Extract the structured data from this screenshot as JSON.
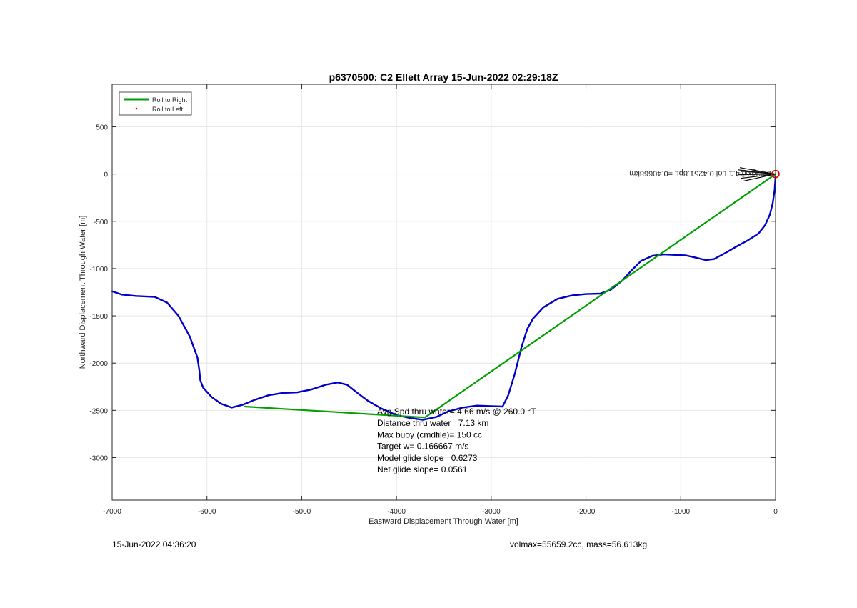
{
  "footer": {
    "timestamp": "15-Jun-2022 04:36:20",
    "volmax_mass": "volmax=55659.2cc, mass=56.613kg"
  },
  "chart_data": {
    "type": "line",
    "title": "p6370500: C2 Ellett Array 15-Jun-2022 02:29:18Z",
    "xlabel": "Eastward Displacement Through Water [m]",
    "ylabel": "Northward Displacement Through Water [m]",
    "xlim": [
      -7000,
      0
    ],
    "ylim": [
      -3450,
      950
    ],
    "xticks": [
      -7000,
      -6000,
      -5000,
      -4000,
      -3000,
      -2000,
      -1000,
      0
    ],
    "yticks": [
      500,
      0,
      -500,
      -1000,
      -1500,
      -2000,
      -2500,
      -3000
    ],
    "grid": true,
    "legend": {
      "placement": "top-left",
      "entries": [
        {
          "label": "Roll to Right",
          "marker": "line",
          "color": "#00a000"
        },
        {
          "label": "Roll to Left",
          "marker": "dot",
          "color": "#e00000"
        }
      ]
    },
    "series": [
      {
        "color": "#0000c8",
        "x": [
          -7000,
          -6900,
          -6750,
          -6550,
          -6420,
          -6300,
          -6180,
          -6100,
          -6080,
          -6070,
          -6040,
          -5950,
          -5850,
          -5740,
          -5620,
          -5500,
          -5350,
          -5200,
          -5050,
          -4900,
          -4750,
          -4620,
          -4520,
          -4420,
          -4300,
          -4160,
          -4000,
          -3860,
          -3720,
          -3580,
          -3450,
          -3300,
          -3150,
          -3000,
          -2880,
          -2820,
          -2750,
          -2680,
          -2620,
          -2560,
          -2450,
          -2300,
          -2150,
          -2000,
          -1850,
          -1740,
          -1620,
          -1520,
          -1420,
          -1300,
          -1180,
          -1060,
          -950,
          -840,
          -740,
          -650,
          -520,
          -400,
          -290,
          -180,
          -110,
          -60,
          -30,
          -10,
          0
        ],
        "y": [
          -1240,
          -1275,
          -1290,
          -1300,
          -1360,
          -1500,
          -1720,
          -1940,
          -2080,
          -2180,
          -2260,
          -2360,
          -2430,
          -2470,
          -2440,
          -2390,
          -2340,
          -2315,
          -2310,
          -2280,
          -2230,
          -2205,
          -2230,
          -2310,
          -2400,
          -2480,
          -2550,
          -2580,
          -2600,
          -2570,
          -2510,
          -2470,
          -2450,
          -2455,
          -2460,
          -2340,
          -2110,
          -1830,
          -1640,
          -1530,
          -1410,
          -1320,
          -1285,
          -1270,
          -1265,
          -1225,
          -1130,
          -1020,
          -920,
          -865,
          -850,
          -855,
          -860,
          -885,
          -910,
          -900,
          -830,
          -760,
          -700,
          -630,
          -540,
          -430,
          -310,
          -170,
          -30
        ]
      },
      {
        "color": "#00a000",
        "x": [
          -5600,
          -3700,
          0
        ],
        "y": [
          -2460,
          -2575,
          0
        ]
      }
    ],
    "point_marker": {
      "x": 0,
      "y": 0,
      "color": "#dd0000"
    },
    "arrow_annotation": "2.03gk@4.1 Lol 0.4251.8pL =0.40668km",
    "stats_annotation": [
      "Avg Spd thru water=  4.66 m/s @ 260.0 °T",
      "Distance thru water=  7.13 km",
      "Max buoy (cmdfile)= 150 cc",
      "Target w= 0.166667 m/s",
      "Model glide slope= 0.6273",
      "Net glide slope= 0.0561"
    ]
  }
}
